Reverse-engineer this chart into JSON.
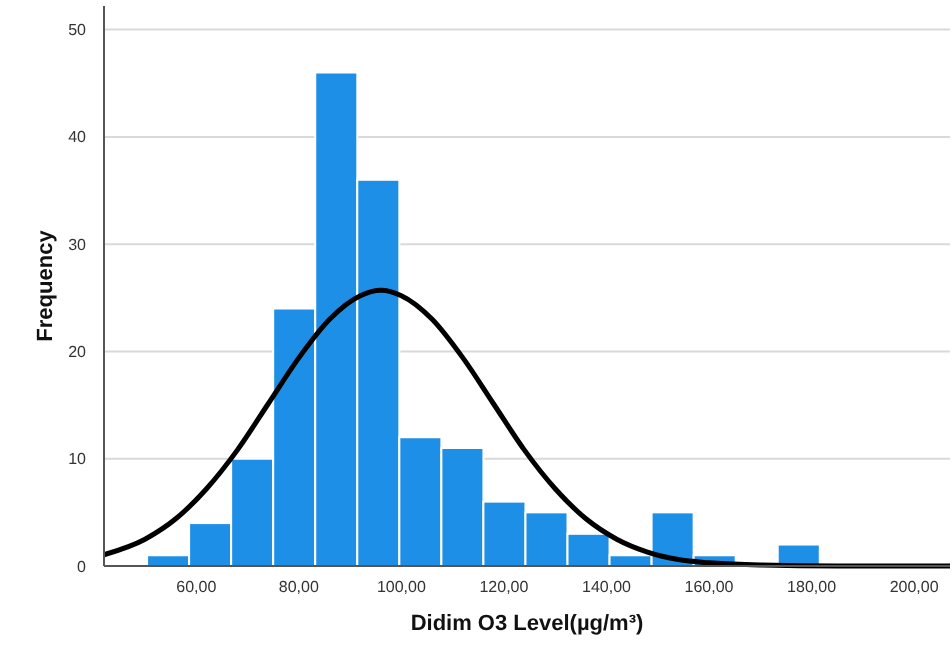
{
  "chart_data": {
    "type": "histogram",
    "xlabel": "Didim O3 Level(µg/m³)",
    "ylabel": "Frequency",
    "bins": [
      50.4,
      58.6,
      66.8,
      75,
      83.2,
      91.4,
      99.6,
      107.8,
      116,
      124.2,
      132.4,
      140.6,
      148.8,
      157,
      165.2,
      173.4,
      181.6
    ],
    "values": [
      1,
      4,
      10,
      24,
      46,
      36,
      12,
      11,
      6,
      5,
      3,
      1,
      5,
      1,
      0,
      2
    ],
    "color": "#1e8fe6",
    "series": [
      {
        "type": "line",
        "color": "#000000",
        "x": [
          42,
          50,
          56,
          62,
          68,
          74,
          80,
          86,
          92,
          96,
          100,
          106,
          112,
          118,
          124,
          130,
          136,
          142,
          148,
          154,
          160,
          170,
          185,
          207
        ],
        "values": [
          1.05,
          2.5,
          4.4,
          7.2,
          10.8,
          15.1,
          19.4,
          23,
          25.2,
          25.7,
          25.2,
          23,
          19.4,
          15.1,
          10.8,
          7.2,
          4.4,
          2.5,
          1.3,
          0.6,
          0.3,
          0.1,
          0,
          0
        ]
      }
    ],
    "xlim": [
      42,
      207
    ],
    "ylim": [
      0,
      52.2
    ],
    "xticks": [
      {
        "value": 60,
        "label": "60,00"
      },
      {
        "value": 80,
        "label": "80,00"
      },
      {
        "value": 100,
        "label": "100,00"
      },
      {
        "value": 120,
        "label": "120,00"
      },
      {
        "value": 140,
        "label": "140,00"
      },
      {
        "value": 160,
        "label": "160,00"
      },
      {
        "value": 180,
        "label": "180,00"
      },
      {
        "value": 200,
        "label": "200,00"
      }
    ],
    "yticks": [
      0,
      10,
      20,
      30,
      40,
      50
    ],
    "grid": "y"
  }
}
